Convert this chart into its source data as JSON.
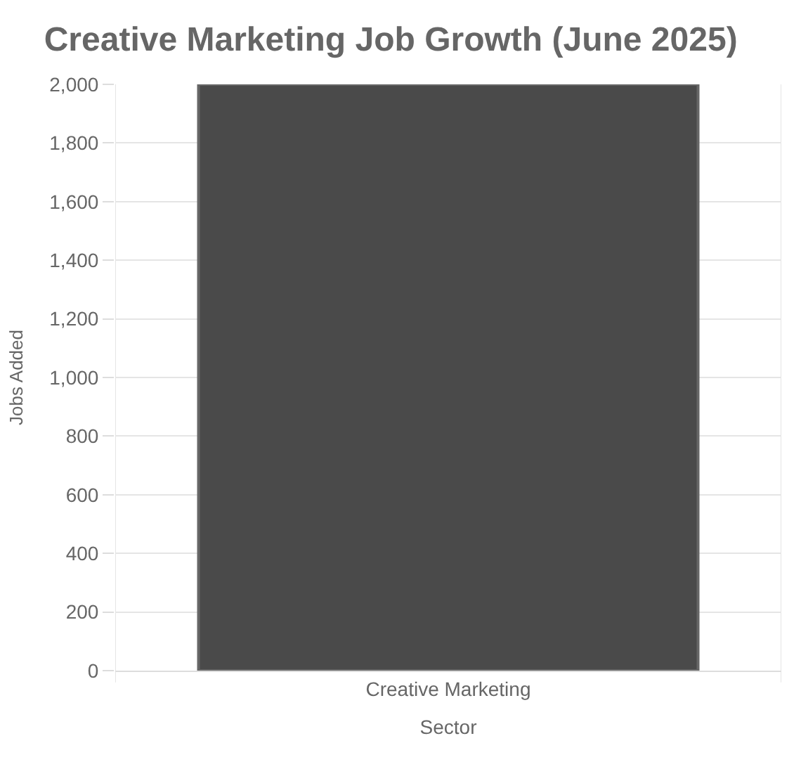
{
  "chart_data": {
    "type": "bar",
    "title": "Creative Marketing Job Growth (June 2025)",
    "xlabel": "Sector",
    "ylabel": "Jobs Added",
    "categories": [
      "Creative Marketing"
    ],
    "series": [
      {
        "color": "#4a4a4a",
        "values": [
          2000
        ]
      }
    ],
    "ylim": [
      0,
      2000
    ],
    "yticks": [
      {
        "value": 0,
        "label": "0"
      },
      {
        "value": 200,
        "label": "200"
      },
      {
        "value": 400,
        "label": "400"
      },
      {
        "value": 600,
        "label": "600"
      },
      {
        "value": 800,
        "label": "800"
      },
      {
        "value": 1000,
        "label": "1,000"
      },
      {
        "value": 1200,
        "label": "1,200"
      },
      {
        "value": 1400,
        "label": "1,400"
      },
      {
        "value": 1600,
        "label": "1,600"
      },
      {
        "value": 1800,
        "label": "1,800"
      },
      {
        "value": 2000,
        "label": "2,000"
      }
    ],
    "grid": true
  }
}
